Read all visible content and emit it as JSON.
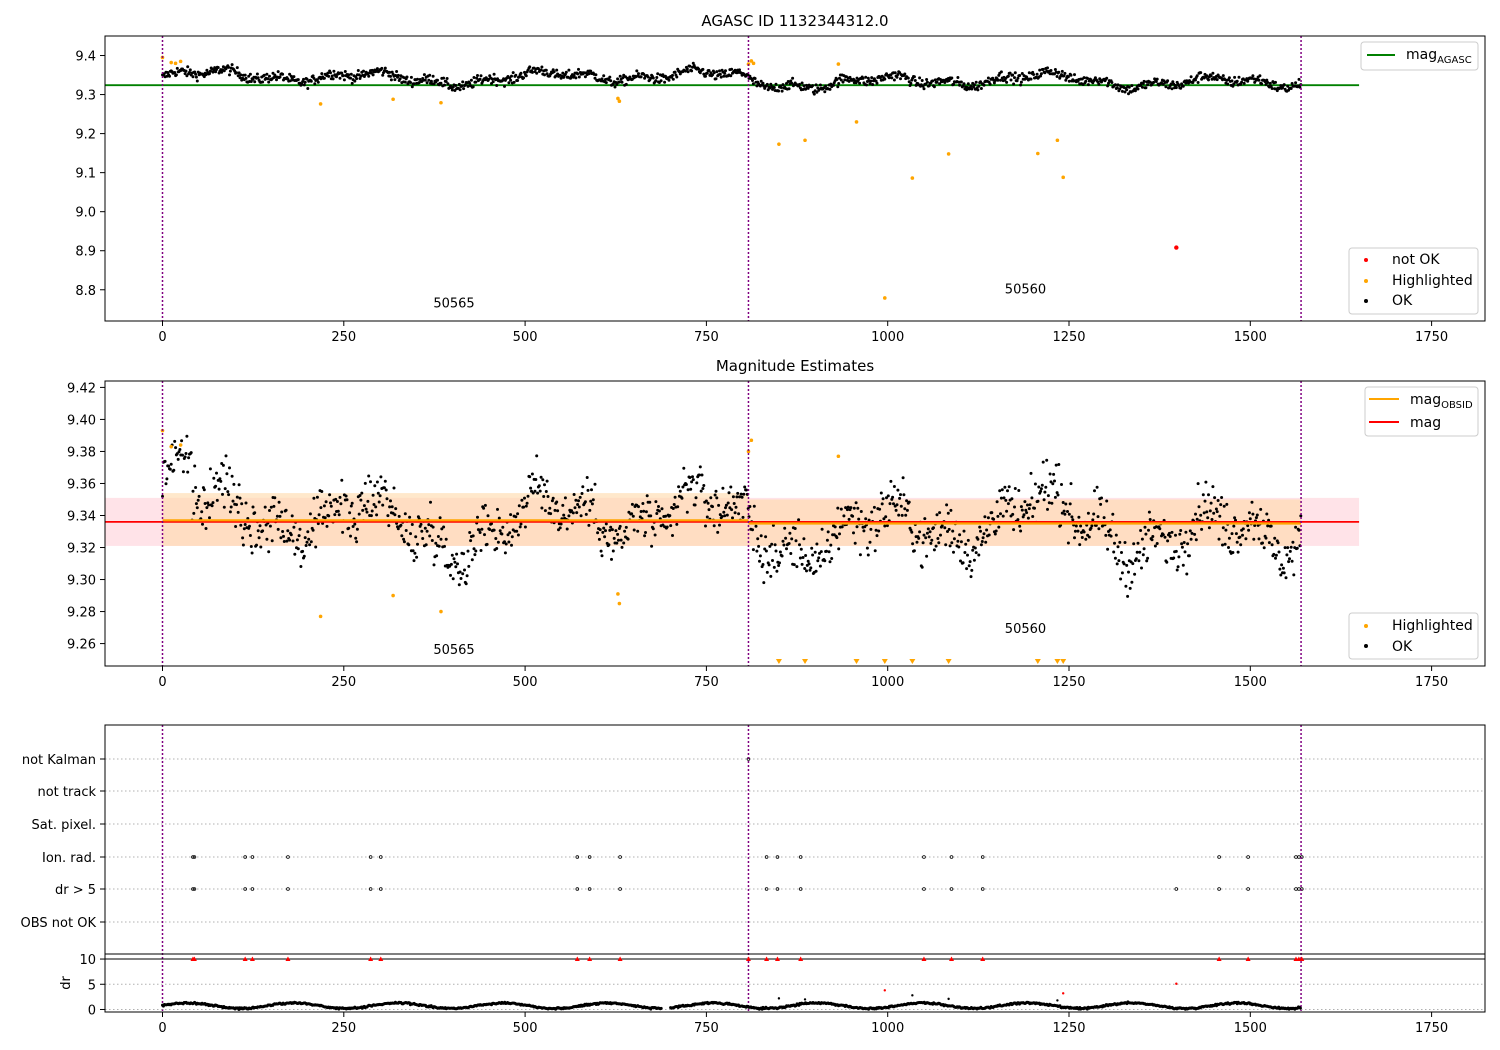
{
  "colors": {
    "ok": "#000000",
    "highlighted": "#ffa500",
    "not_ok": "#ff0000",
    "mag_agasc": "#008000",
    "mag_obsid": "#ffa500",
    "mag": "#ff0000",
    "obsid_boundary": "#800080",
    "band_mag": "#ffc0cb",
    "band_obsid": "#ffd8a8"
  },
  "chart_data": [
    {
      "type": "scatter",
      "title": "AGASC ID 1132344312.0",
      "xlim": [
        -80,
        1820
      ],
      "ylim": [
        8.72,
        9.45
      ],
      "xticks": [
        "0",
        "250",
        "500",
        "750",
        "1000",
        "1250",
        "1500",
        "1750"
      ],
      "yticks": [
        "8.8",
        "8.9",
        "9.0",
        "9.1",
        "9.2",
        "9.3",
        "9.4"
      ],
      "obsid_boundaries": [
        0,
        808,
        1570
      ],
      "obsid_labels": [
        {
          "text": "50565",
          "x": 402,
          "y": 8.755
        },
        {
          "text": "50560",
          "x": 1190,
          "y": 8.79
        }
      ],
      "mag_agasc": {
        "value": 9.324,
        "x_range": [
          -80,
          1650
        ]
      },
      "legend_top": [
        "mag_AGASC"
      ],
      "legend_bottom": [
        "not OK",
        "Highlighted",
        "OK"
      ],
      "ok_series": {
        "segments": [
          {
            "x": [
              0,
              808
            ],
            "mean": 9.34
          },
          {
            "x": [
              808,
              1570
            ],
            "mean": 9.335
          }
        ]
      },
      "highlighted": [
        [
          0,
          9.395
        ],
        [
          12,
          9.382
        ],
        [
          18,
          9.38
        ],
        [
          25,
          9.385
        ],
        [
          218,
          9.276
        ],
        [
          318,
          9.288
        ],
        [
          384,
          9.279
        ],
        [
          628,
          9.29
        ],
        [
          630,
          9.283
        ],
        [
          808,
          9.378
        ],
        [
          812,
          9.386
        ],
        [
          815,
          9.38
        ],
        [
          850,
          9.173
        ],
        [
          886,
          9.183
        ],
        [
          932,
          9.378
        ],
        [
          957,
          9.23
        ],
        [
          996,
          8.779
        ],
        [
          1034,
          9.086
        ],
        [
          1084,
          9.148
        ],
        [
          1207,
          9.149
        ],
        [
          1234,
          9.183
        ],
        [
          1242,
          9.088
        ]
      ],
      "not_ok": [
        [
          1398,
          8.908
        ]
      ]
    },
    {
      "type": "scatter",
      "title": "Magnitude Estimates",
      "xlim": [
        -80,
        1820
      ],
      "ylim": [
        9.246,
        9.424
      ],
      "xticks": [
        "0",
        "250",
        "500",
        "750",
        "1000",
        "1250",
        "1500",
        "1750"
      ],
      "yticks": [
        "9.26",
        "9.28",
        "9.30",
        "9.32",
        "9.34",
        "9.36",
        "9.38",
        "9.40",
        "9.42"
      ],
      "obsid_boundaries": [
        0,
        808,
        1570
      ],
      "obsid_labels": [
        {
          "text": "50565",
          "x": 402,
          "y": 9.2535
        },
        {
          "text": "50560",
          "x": 1190,
          "y": 9.2665
        }
      ],
      "mag": {
        "value": 9.336,
        "band": [
          9.321,
          9.351
        ],
        "x_range": [
          -80,
          1650
        ]
      },
      "mag_obsid": [
        {
          "x": [
            0,
            808
          ],
          "value": 9.337,
          "band": [
            9.321,
            9.354
          ]
        },
        {
          "x": [
            808,
            1570
          ],
          "value": 9.335,
          "band": [
            9.321,
            9.35
          ]
        }
      ],
      "legend_top": [
        "mag_OBSID",
        "mag"
      ],
      "legend_bottom": [
        "Highlighted",
        "OK"
      ],
      "highlighted": [
        [
          0,
          9.393
        ],
        [
          12,
          9.383
        ],
        [
          25,
          9.384
        ],
        [
          218,
          9.277
        ],
        [
          318,
          9.29
        ],
        [
          384,
          9.28
        ],
        [
          628,
          9.291
        ],
        [
          630,
          9.285
        ],
        [
          808,
          9.38
        ],
        [
          812,
          9.387
        ],
        [
          932,
          9.377
        ]
      ],
      "below_range_markers": [
        850,
        886,
        957,
        996,
        1034,
        1084,
        1207,
        1234,
        1242
      ]
    },
    {
      "type": "scatter",
      "xlim": [
        -80,
        1820
      ],
      "categories": [
        "not Kalman",
        "not track",
        "Sat. pixel.",
        "Ion. rad.",
        "dr > 5",
        "OBS not OK"
      ],
      "flag_positions": {
        "not Kalman": [
          808
        ],
        "not track": [],
        "Sat. pixel.": [],
        "Ion. rad.": [
          42,
          44,
          114,
          124,
          173,
          287,
          301,
          572,
          589,
          631,
          833,
          848,
          880,
          1050,
          1088,
          1131,
          1457,
          1497,
          1563,
          1567,
          1571
        ],
        "dr > 5": [
          42,
          44,
          114,
          124,
          173,
          287,
          301,
          572,
          589,
          631,
          833,
          848,
          880,
          1050,
          1088,
          1131,
          1398,
          1457,
          1497,
          1563,
          1567,
          1571
        ],
        "OBS not OK": []
      },
      "dr": {
        "ylabel": "dr",
        "ylim": [
          -0.5,
          11
        ],
        "yticks": [
          "0",
          "5",
          "10"
        ],
        "threshold": 10,
        "large": [
          42,
          44,
          114,
          124,
          173,
          287,
          301,
          572,
          589,
          631,
          808,
          833,
          848,
          880,
          1050,
          1088,
          1131,
          1457,
          1497,
          1563,
          1567,
          1571
        ],
        "medium": [
          [
            850,
            2.2
          ],
          [
            886,
            2.0
          ],
          [
            996,
            3.8
          ],
          [
            1034,
            2.8
          ],
          [
            1084,
            2.1
          ],
          [
            1234,
            1.8
          ],
          [
            1242,
            3.2
          ],
          [
            1398,
            5.1
          ]
        ]
      },
      "xticks": [
        "0",
        "250",
        "500",
        "750",
        "1000",
        "1250",
        "1500",
        "1750"
      ]
    }
  ]
}
